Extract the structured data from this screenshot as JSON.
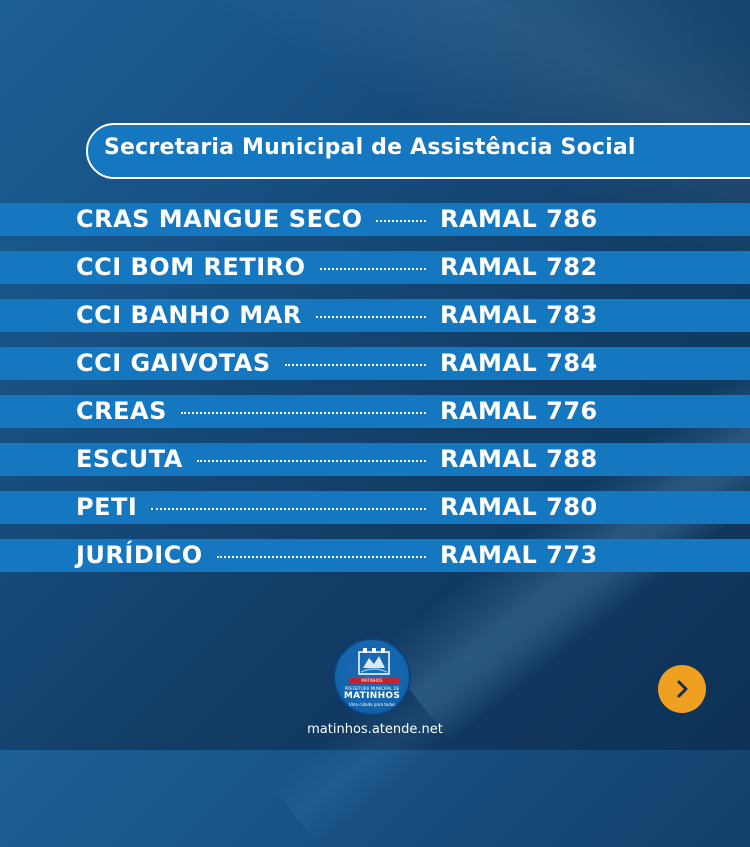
{
  "header": {
    "title": "Secretaria Municipal de Assistência Social"
  },
  "rows": [
    {
      "name": "CRAS MANGUE SECO",
      "ramal": "RAMAL 786"
    },
    {
      "name": "CCI BOM RETIRO",
      "ramal": "RAMAL 782"
    },
    {
      "name": "CCI BANHO MAR",
      "ramal": "RAMAL 783"
    },
    {
      "name": "CCI GAIVOTAS",
      "ramal": "RAMAL 784"
    },
    {
      "name": "CREAS",
      "ramal": "RAMAL 776"
    },
    {
      "name": "ESCUTA",
      "ramal": "RAMAL 788"
    },
    {
      "name": "PETI",
      "ramal": "RAMAL 780"
    },
    {
      "name": "JURÍDICO",
      "ramal": "RAMAL 773"
    }
  ],
  "logo": {
    "top_text": "PREFEITURA MUNICIPAL DE",
    "name": "MATINHOS",
    "tagline": "Uma cidade para todos",
    "ribbon": "MATINHOS"
  },
  "footer": {
    "url": "matinhos.atende.net"
  },
  "next_button": {
    "icon": "chevron-right-icon"
  },
  "colors": {
    "band": "#1577bf",
    "background": "#174f80",
    "accent": "#f0a020",
    "text": "#ffffff"
  }
}
